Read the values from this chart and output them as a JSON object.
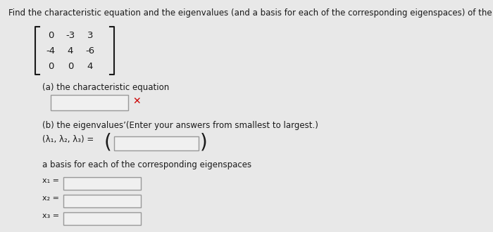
{
  "title": "Find the characteristic equation and the eigenvalues (and a basis for each of the corresponding eigenspaces) of the matrix.",
  "matrix_rows": [
    [
      "0",
      "-3",
      "3"
    ],
    [
      "-4",
      "4",
      "-6"
    ],
    [
      "0",
      "0",
      "4"
    ]
  ],
  "part_a_label": "(a) the characteristic equation",
  "part_b_label": "(b) the eigenvalues’(Enter your answers from smallest to largest.)",
  "lambda_label": "(λ₁, λ₂, λ₃) =",
  "basis_label": "a basis for each of the corresponding eigenspaces",
  "x1_label": "x₁ =",
  "x2_label": "x₂ =",
  "x3_label": "x₃ =",
  "bg_color": "#e8e8e8",
  "text_color": "#1a1a1a",
  "box_fill": "#f0f0f0",
  "box_edge": "#999999",
  "red_x_color": "#cc0000",
  "title_fontsize": 8.5,
  "body_fontsize": 8.5,
  "matrix_fontsize": 9.5,
  "small_label_fontsize": 8.0
}
